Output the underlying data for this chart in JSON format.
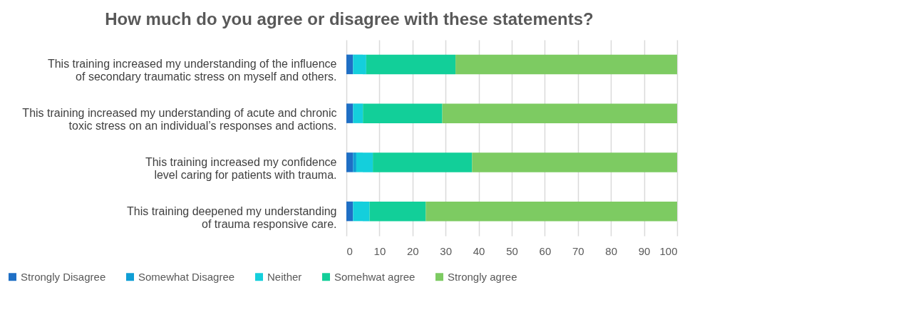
{
  "chart_data": {
    "type": "bar",
    "orientation": "horizontal",
    "stacked": true,
    "title": "How much do you agree or disagree with these statements?",
    "categories": [
      "This training increased my understanding of the influence of secondary traumatic stress on myself and others.",
      "This training increased my understanding of acute and chronic toxic stress on an individual’s responses and actions.",
      "This training increased my confidence level caring for patients with trauma.",
      "This training deepened my understanding of trauma responsive care."
    ],
    "series": [
      {
        "name": "Strongly Disagree",
        "color": "#1f6fc5",
        "values": [
          2,
          2,
          2,
          2
        ]
      },
      {
        "name": "Somewhat Disagree",
        "color": "#0f9ed5",
        "values": [
          0,
          0,
          1,
          0
        ]
      },
      {
        "name": "Neither",
        "color": "#14cfdc",
        "values": [
          4,
          3,
          5,
          5
        ]
      },
      {
        "name": "Somehwat agree",
        "color": "#12cf99",
        "values": [
          27,
          24,
          30,
          17
        ]
      },
      {
        "name": "Strongly agree",
        "color": "#7dcb62",
        "values": [
          67,
          71,
          62,
          76
        ]
      }
    ],
    "xlim": [
      0,
      100
    ],
    "xticks": [
      0,
      10,
      20,
      30,
      40,
      50,
      60,
      70,
      80,
      90,
      100
    ],
    "grid": "x",
    "legend": "bottom"
  }
}
